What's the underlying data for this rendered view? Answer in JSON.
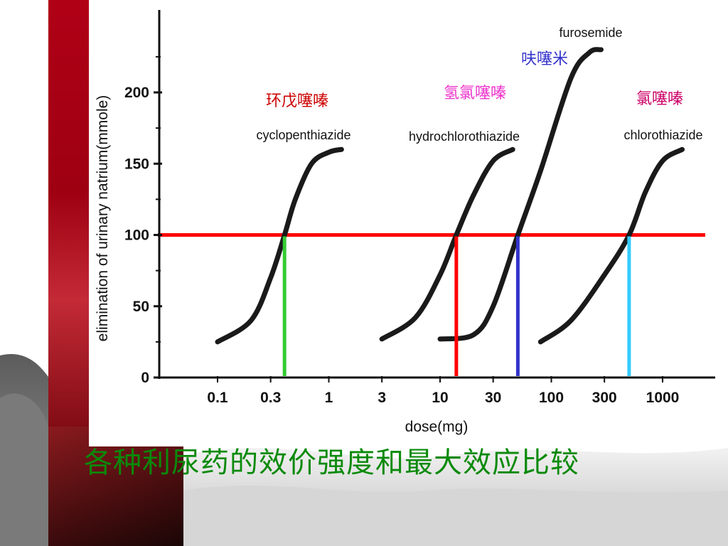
{
  "caption": "各种利尿药的效价强度和最大效应比较",
  "chart_data": {
    "type": "line",
    "title": "",
    "xlabel": "dose(mg)",
    "ylabel": "elimination of urinary natrium(mmole)",
    "x_scale": "log",
    "xticks": [
      "0.1",
      "0.3",
      "1",
      "3",
      "10",
      "30",
      "100",
      "300",
      "1000"
    ],
    "yticks": [
      "0",
      "50",
      "100",
      "150",
      "200"
    ],
    "ylim": [
      0,
      250
    ],
    "reference_line": {
      "y": 100,
      "color": "#ff0000"
    },
    "series": [
      {
        "name": "cyclopenthiazide",
        "name_cn": "环戊噻嗪",
        "name_cn_color": "#cc0000",
        "x": [
          0.1,
          0.2,
          0.3,
          0.4,
          0.5,
          0.7,
          1.0,
          1.3
        ],
        "y": [
          25,
          40,
          70,
          100,
          125,
          150,
          158,
          160
        ],
        "ed100": 0.4,
        "drop_color": "#33cc33"
      },
      {
        "name": "hydrochlorothiazide",
        "name_cn": "氢氯噻嗪",
        "name_cn_color": "#ee33cc",
        "x": [
          3,
          6,
          10,
          14,
          20,
          30,
          45
        ],
        "y": [
          27,
          42,
          72,
          100,
          128,
          152,
          160
        ],
        "ed100": 14,
        "drop_color": "#ff0000"
      },
      {
        "name": "furosemide",
        "name_cn": "呋噻米",
        "name_cn_color": "#3333cc",
        "x": [
          10,
          20,
          30,
          50,
          80,
          150,
          220,
          280
        ],
        "y": [
          27,
          30,
          50,
          100,
          145,
          210,
          228,
          230
        ],
        "ed100": 50,
        "drop_color": "#3333cc"
      },
      {
        "name": "chlorothiazide",
        "name_cn": "氯噻嗪",
        "name_cn_color": "#cc0066",
        "x": [
          80,
          150,
          300,
          500,
          700,
          1000,
          1500
        ],
        "y": [
          25,
          40,
          72,
          100,
          130,
          152,
          160
        ],
        "ed100": 500,
        "drop_color": "#33ccff"
      }
    ]
  }
}
